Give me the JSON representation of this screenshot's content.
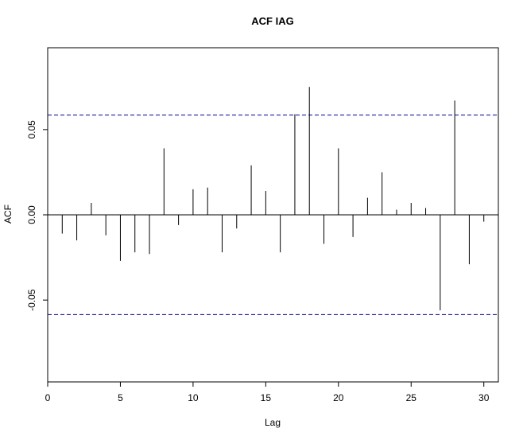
{
  "chart_data": {
    "type": "bar",
    "title": "ACF IAG",
    "xlabel": "Lag",
    "ylabel": "ACF",
    "xlim": [
      0,
      31
    ],
    "ylim": [
      -0.098,
      0.098
    ],
    "x_ticks": [
      0,
      5,
      10,
      15,
      20,
      25,
      30
    ],
    "x_tick_labels": [
      "0",
      "5",
      "10",
      "15",
      "20",
      "25",
      "30"
    ],
    "y_ticks": [
      -0.05,
      0.0,
      0.05
    ],
    "y_tick_labels": [
      "-0.05",
      "0.00",
      "0.05"
    ],
    "confidence_bound": 0.0585,
    "grid": false,
    "lags": [
      1,
      2,
      3,
      4,
      5,
      6,
      7,
      8,
      9,
      10,
      11,
      12,
      13,
      14,
      15,
      16,
      17,
      18,
      19,
      20,
      21,
      22,
      23,
      24,
      25,
      26,
      27,
      28,
      29,
      30
    ],
    "values": [
      -0.011,
      -0.015,
      0.007,
      -0.012,
      -0.027,
      -0.022,
      -0.023,
      0.039,
      -0.006,
      0.015,
      0.016,
      -0.022,
      -0.008,
      0.029,
      0.014,
      -0.022,
      0.059,
      0.075,
      -0.017,
      0.039,
      -0.013,
      0.01,
      0.025,
      0.003,
      0.007,
      0.004,
      -0.056,
      0.067,
      -0.029,
      -0.004
    ],
    "colors": {
      "bars": "#000000",
      "confidence_lines": "#00008b",
      "zero_line": "#000000",
      "frame": "#000000"
    }
  }
}
